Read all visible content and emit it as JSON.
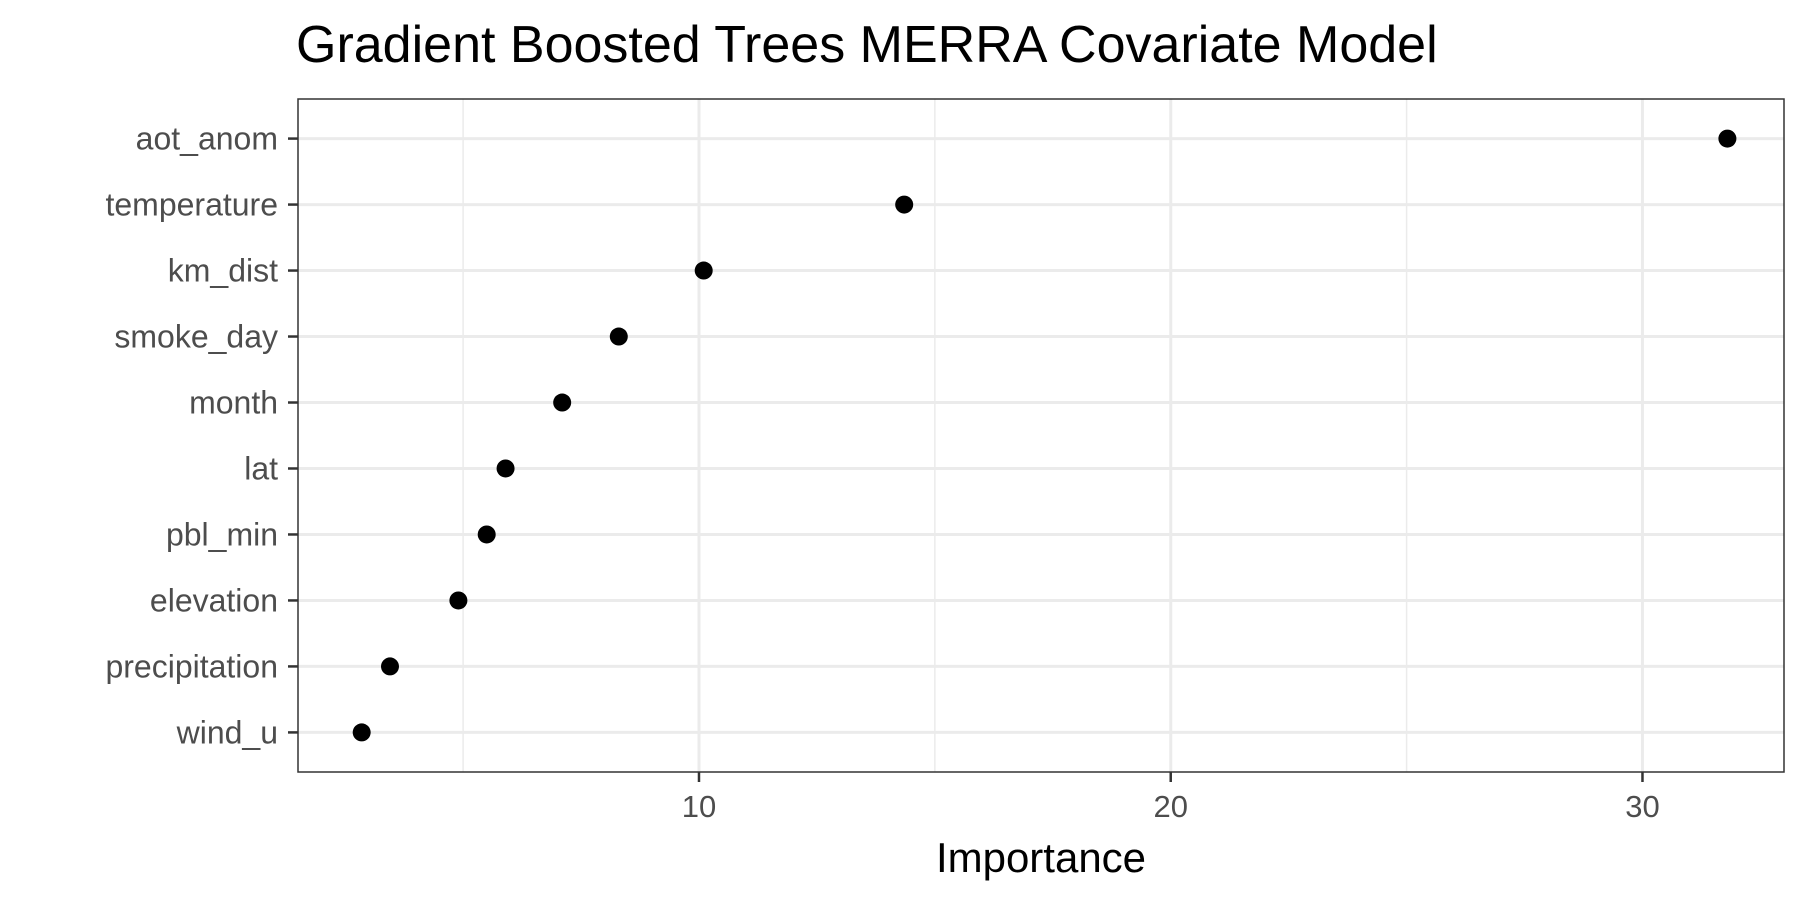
{
  "chart_data": {
    "type": "scatter",
    "title": "Gradient Boosted Trees MERRA Covariate Model",
    "xlabel": "Importance",
    "ylabel": "",
    "xlim": [
      1.5,
      33.0
    ],
    "xticks": [
      10,
      20,
      30
    ],
    "xticks_minor": [
      5,
      15,
      25
    ],
    "grid": true,
    "legend": "none",
    "categories": [
      "aot_anom",
      "temperature",
      "km_dist",
      "smoke_day",
      "month",
      "lat",
      "pbl_min",
      "elevation",
      "precipitation",
      "wind_u"
    ],
    "values": [
      31.8,
      14.35,
      10.1,
      8.3,
      7.1,
      5.9,
      5.5,
      4.9,
      3.45,
      2.85
    ],
    "point_color": "#000000"
  }
}
